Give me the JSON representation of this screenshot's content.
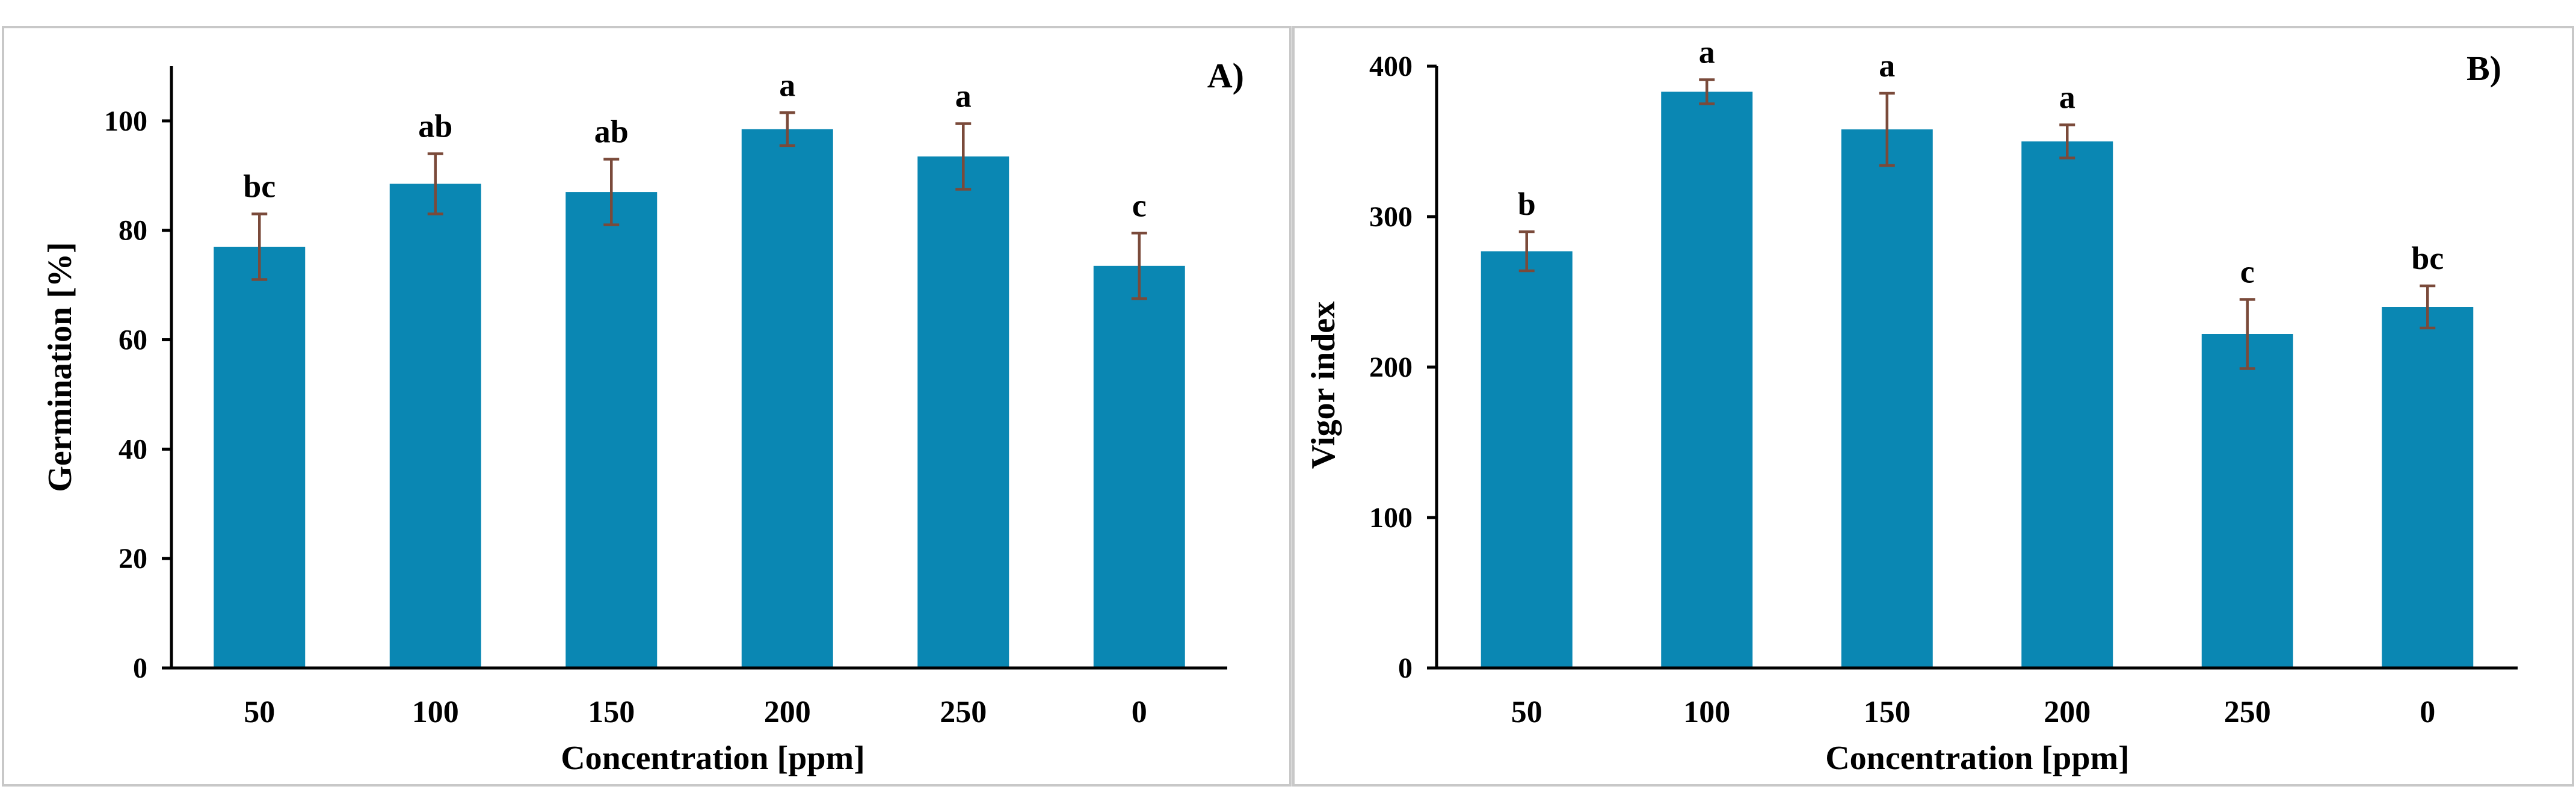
{
  "chart_data": [
    {
      "type": "bar",
      "panel_label": "A)",
      "xlabel": "Concentration [ppm]",
      "ylabel": "Germination [%]",
      "categories": [
        "50",
        "100",
        "150",
        "200",
        "250",
        "0"
      ],
      "values": [
        77,
        88.5,
        87,
        98.5,
        93.5,
        73.5
      ],
      "errors": [
        6,
        5.5,
        6,
        3,
        6,
        6
      ],
      "significance": [
        "bc",
        "ab",
        "ab",
        "a",
        "a",
        "c"
      ],
      "ylim": [
        0,
        110
      ],
      "yticks": [
        0,
        20,
        40,
        60,
        80,
        100
      ],
      "bar_color": "#0a87b3",
      "error_color": "#7a4a3a"
    },
    {
      "type": "bar",
      "panel_label": "B)",
      "xlabel": "Concentration [ppm]",
      "ylabel": "Vigor index",
      "categories": [
        "50",
        "100",
        "150",
        "200",
        "250",
        "0"
      ],
      "values": [
        277,
        383,
        358,
        350,
        222,
        240
      ],
      "errors": [
        13,
        8,
        24,
        11,
        23,
        14
      ],
      "significance": [
        "b",
        "a",
        "a",
        "a",
        "c",
        "bc"
      ],
      "ylim": [
        0,
        400
      ],
      "yticks": [
        0,
        100,
        200,
        300,
        400
      ],
      "bar_color": "#0a87b3",
      "error_color": "#7a4a3a"
    }
  ]
}
